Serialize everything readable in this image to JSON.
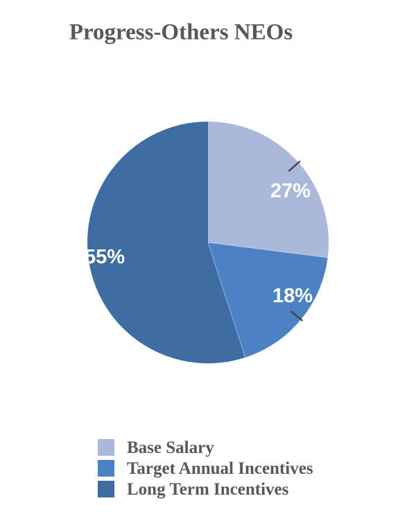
{
  "chart_data": {
    "type": "pie",
    "title": "Progress-Others NEOs",
    "unit": "percent",
    "start_angle_deg": 0,
    "direction": "clockwise",
    "legend_position": "bottom-left",
    "label_color": "#ffffff",
    "text_color": "#58585a",
    "slices": [
      {
        "name": "Base Salary",
        "value": 27,
        "label": "27%",
        "color": "#aab9d9"
      },
      {
        "name": "Target Annual Incentives",
        "value": 18,
        "label": "18%",
        "color": "#4c82c4"
      },
      {
        "name": "Long Term Incentives",
        "value": 55,
        "label": "55%",
        "color": "#3e6da3"
      }
    ]
  }
}
